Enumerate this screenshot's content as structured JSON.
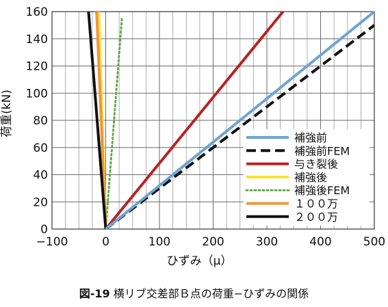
{
  "caption": {
    "figure_no": "図-19",
    "text": "横リブ交差部Ｂ点の荷重−ひずみの関係"
  },
  "chart_data": {
    "type": "line",
    "title": "",
    "xlabel": "ひずみ（μ）",
    "ylabel": "荷重(kN)",
    "xlim": [
      -100,
      500
    ],
    "ylim": [
      0,
      160
    ],
    "x_ticks": [
      -100,
      0,
      100,
      200,
      300,
      400,
      500
    ],
    "y_ticks": [
      0,
      20,
      40,
      60,
      80,
      100,
      120,
      140,
      160
    ],
    "x_tick_labels": [
      "−100",
      "0",
      "100",
      "200",
      "300",
      "400",
      "500"
    ],
    "y_tick_labels": [
      "0",
      "20",
      "40",
      "60",
      "80",
      "100",
      "120",
      "140",
      "160"
    ],
    "x_minor_grid_step": 25,
    "grid": true,
    "legend_position": "bottom-right",
    "series": [
      {
        "name": "補強前",
        "color": "#6ea4d2",
        "style": "solid",
        "x": [
          0,
          500
        ],
        "y": [
          0,
          160
        ]
      },
      {
        "name": "補強前FEM",
        "color": "#111111",
        "style": "dashed",
        "x": [
          0,
          500
        ],
        "y": [
          0,
          150
        ]
      },
      {
        "name": "与き裂後",
        "color": "#b82323",
        "style": "solid",
        "x": [
          0,
          330
        ],
        "y": [
          0,
          160
        ]
      },
      {
        "name": "補強後",
        "color": "#f2e530",
        "style": "solid",
        "x": [
          0,
          -13
        ],
        "y": [
          0,
          160
        ]
      },
      {
        "name": "補強後FEM",
        "color": "#62a84a",
        "style": "dotted",
        "x": [
          0,
          30
        ],
        "y": [
          0,
          155
        ]
      },
      {
        "name": "１００万",
        "color": "#f2943d",
        "style": "solid",
        "x": [
          0,
          -17
        ],
        "y": [
          0,
          160
        ]
      },
      {
        "name": "２００万",
        "color": "#111111",
        "style": "solid",
        "x": [
          0,
          -32
        ],
        "y": [
          0,
          160
        ]
      }
    ]
  }
}
